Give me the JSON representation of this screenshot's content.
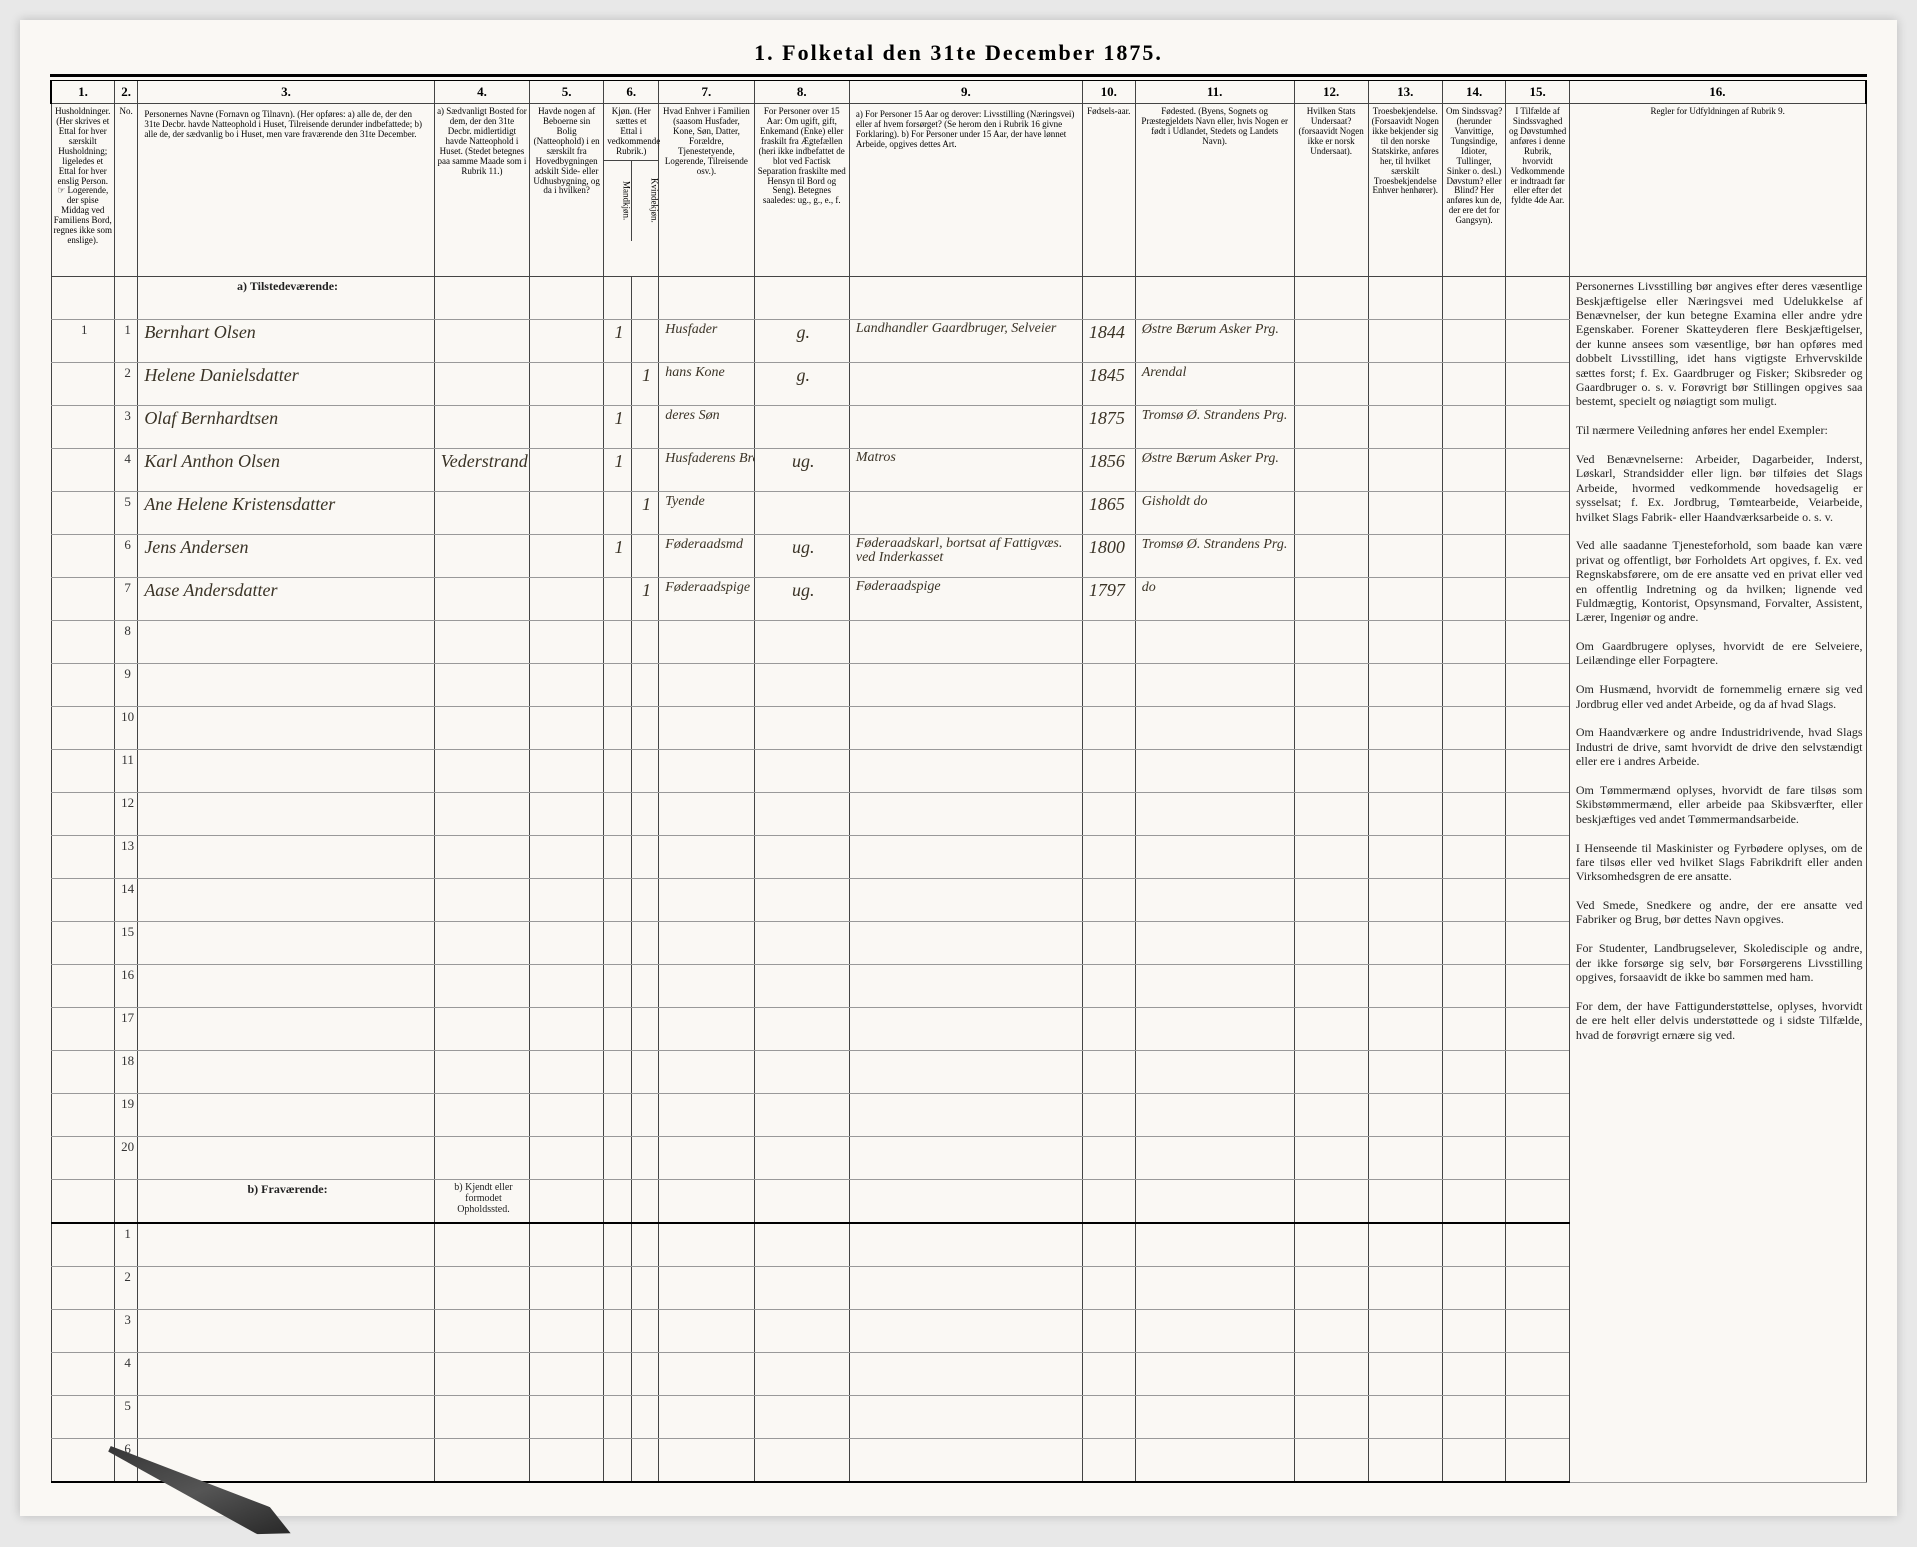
{
  "title": "1. Folketal den 31te December 1875.",
  "columns": {
    "nums": [
      "1.",
      "2.",
      "3.",
      "4.",
      "5.",
      "6.",
      "7.",
      "8.",
      "9.",
      "10.",
      "11.",
      "12.",
      "13.",
      "14.",
      "15.",
      "16."
    ],
    "h1": "Husholdninger. (Her skrives et Ettal for hver særskilt Husholdning; ligeledes et Ettal for hver enslig Person. ☞ Logerende, der spise Middag ved Familiens Bord, regnes ikke som enslige).",
    "h2": "No.",
    "h3": "Personernes Navne (Fornavn og Tilnavn). (Her opføres: a) alle de, der den 31te Decbr. havde Natteophold i Huset, Tilreisende derunder indbefattede; b) alle de, der sædvanlig bo i Huset, men vare fraværende den 31te December.",
    "h4": "a) Sædvanligt Bosted for dem, der den 31te Decbr. midlertidigt havde Natteophold i Huset. (Stedet betegnes paa samme Maade som i Rubrik 11.)",
    "h5": "Havde nogen af Beboerne sin Bolig (Natteophold) i en særskilt fra Hovedbygningen adskilt Side- eller Udhusbygning, og da i hvilken?",
    "h6": "Kjøn. (Her sættes et Ettal i vedkommende Rubrik.)",
    "h6a": "Mandkjøn.",
    "h6b": "Kvindekjøn.",
    "h7": "Hvad Enhver i Familien (saasom Husfader, Kone, Søn, Datter, Forældre, Tjenestetyende, Logerende, Tilreisende osv.).",
    "h8": "For Personer over 15 Aar: Om ugift, gift, Enkemand (Enke) eller fraskilt fra Ægtefællen (heri ikke indbefattet de blot ved Factisk Separation fraskilte med Hensyn til Bord og Seng). Betegnes saaledes: ug., g., e., f.",
    "h9": "a) For Personer 15 Aar og derover: Livsstilling (Næringsvei) eller af hvem forsørget? (Se herom den i Rubrik 16 givne Forklaring). b) For Personer under 15 Aar, der have lønnet Arbeide, opgives dettes Art.",
    "h10": "Fødsels-aar.",
    "h11": "Fødested. (Byens, Sognets og Præstegjeldets Navn eller, hvis Nogen er født i Udlandet, Stedets og Landets Navn).",
    "h12": "Hvilken Stats Undersaat? (forsaavidt Nogen ikke er norsk Undersaat).",
    "h13": "Troesbekjendelse. (Forsaavidt Nogen ikke bekjender sig til den norske Statskirke, anføres her, til hvilket særskilt Troesbekjendelse Enhver henhører).",
    "h14": "Om Sindssvag? (herunder Vanvittige, Tungsindige, Idioter, Tullinger, Sinker o. desl.) Døvstum? eller Blind? Her anføres kun de, der ere det for Gangsyn).",
    "h15": "I Tilfælde af Sindssvaghed og Døvstumhed anføres i denne Rubrik, hvorvidt Vedkommende er indtraadt før eller efter det fyldte 4de Aar.",
    "h16": "Regler for Udfyldningen af Rubrik 9."
  },
  "section_a": "a) Tilstedeværende:",
  "section_b": "b) Fraværende:",
  "section_b_col4": "b) Kjendt eller formodet Opholdssted.",
  "rows": [
    {
      "hh": "1",
      "n": "1",
      "name": "Bernhart Olsen",
      "c4": "",
      "c5": "",
      "m": "1",
      "k": "",
      "c7": "Husfader",
      "c8": "g.",
      "c9": "Landhandler Gaardbruger, Selveier",
      "c10": "1844",
      "c11": "Østre Bærum Asker Prg."
    },
    {
      "hh": "",
      "n": "2",
      "name": "Helene Danielsdatter",
      "c4": "",
      "c5": "",
      "m": "",
      "k": "1",
      "c7": "hans Kone",
      "c8": "g.",
      "c9": "",
      "c10": "1845",
      "c11": "Arendal"
    },
    {
      "hh": "",
      "n": "3",
      "name": "Olaf Bernhardtsen",
      "c4": "",
      "c5": "",
      "m": "1",
      "k": "",
      "c7": "deres Søn",
      "c8": "",
      "c9": "",
      "c10": "1875",
      "c11": "Tromsø Ø. Strandens Prg."
    },
    {
      "hh": "",
      "n": "4",
      "name": "Karl Anthon Olsen",
      "c4": "Vederstrand",
      "c5": "",
      "m": "1",
      "k": "",
      "c7": "Husfaderens Broder, Besøgende",
      "c8": "ug.",
      "c9": "Matros",
      "c10": "1856",
      "c11": "Østre Bærum Asker Prg."
    },
    {
      "hh": "",
      "n": "5",
      "name": "Ane Helene Kristensdatter",
      "c4": "",
      "c5": "",
      "m": "",
      "k": "1",
      "c7": "Tyende",
      "c8": "",
      "c9": "",
      "c10": "1865",
      "c11": "Gisholdt    do"
    },
    {
      "hh": "",
      "n": "6",
      "name": "Jens Andersen",
      "c4": "",
      "c5": "",
      "m": "1",
      "k": "",
      "c7": "Føderaadsmd",
      "c8": "ug.",
      "c9": "Føderaadskarl, bortsat af Fattigvæs. ved Inderkasset",
      "c10": "1800",
      "c11": "Tromsø Ø. Strandens Prg."
    },
    {
      "hh": "",
      "n": "7",
      "name": "Aase Andersdatter",
      "c4": "",
      "c5": "",
      "m": "",
      "k": "1",
      "c7": "Føderaadspige",
      "c8": "ug.",
      "c9": "Føderaadspige",
      "c10": "1797",
      "c11": "do"
    }
  ],
  "empty_a": [
    "8",
    "9",
    "10",
    "11",
    "12",
    "13",
    "14",
    "15",
    "16",
    "17",
    "18",
    "19",
    "20"
  ],
  "empty_b": [
    "1",
    "2",
    "3",
    "4",
    "5",
    "6"
  ],
  "sidetext": "Personernes Livsstilling bør angives efter deres væsentlige Beskjæftigelse eller Næringsvei med Udelukkelse af Benævnelser, der kun betegne Examina eller andre ydre Egenskaber. Forener Skatteyderen flere Beskjæftigelser, der kunne ansees som væsentlige, bør han opføres med dobbelt Livsstilling, idet hans vigtigste Erhvervskilde sættes forst; f. Ex. Gaardbruger og Fisker; Skibsreder og Gaardbruger o. s. v. Forøvrigt bør Stillingen opgives saa bestemt, specielt og nøiagtigt som muligt.\n\nTil nærmere Veiledning anføres her endel Exempler:\n\nVed Benævnelserne: Arbeider, Dagarbeider, Inderst, Løskarl, Strandsidder eller lign. bør tilføies det Slags Arbeide, hvormed vedkommende hovedsagelig er sysselsat; f. Ex. Jordbrug, Tømtearbeide, Veiarbeide, hvilket Slags Fabrik- eller Haandværksarbeide o. s. v.\n\nVed alle saadanne Tjenesteforhold, som baade kan være privat og offentligt, bør Forholdets Art opgives, f. Ex. ved Regnskabsførere, om de ere ansatte ved en privat eller ved en offentlig Indretning og da hvilken; lignende ved Fuldmægtig, Kontorist, Opsynsmand, Forvalter, Assistent, Lærer, Ingeniør og andre.\n\nOm Gaardbrugere oplyses, hvorvidt de ere Selveiere, Leilændinge eller Forpagtere.\n\nOm Husmænd, hvorvidt de fornemmelig ernære sig ved Jordbrug eller ved andet Arbeide, og da af hvad Slags.\n\nOm Haandværkere og andre Industridrivende, hvad Slags Industri de drive, samt hvorvidt de drive den selvstændigt eller ere i andres Arbeide.\n\nOm Tømmermænd oplyses, hvorvidt de fare tilsøs som Skibstømmermænd, eller arbeide paa Skibsværfter, eller beskjæftiges ved andet Tømmermandsarbeide.\n\nI Henseende til Maskinister og Fyrbødere oplyses, om de fare tilsøs eller ved hvilket Slags Fabrikdrift eller anden Virksomhedsgren de ere ansatte.\n\nVed Smede, Snedkere og andre, der ere ansatte ved Fabriker og Brug, bør dettes Navn opgives.\n\nFor Studenter, Landbrugselever, Skoledisciple og andre, der ikke forsørge sig selv, bør Forsørgerens Livsstilling opgives, forsaavidt de ikke bo sammen med ham.\n\nFor dem, der have Fattigunderstøttelse, oplyses, hvorvidt de ere helt eller delvis understøttede og i sidste Tilfælde, hvad de forøvrigt ernære sig ved."
}
